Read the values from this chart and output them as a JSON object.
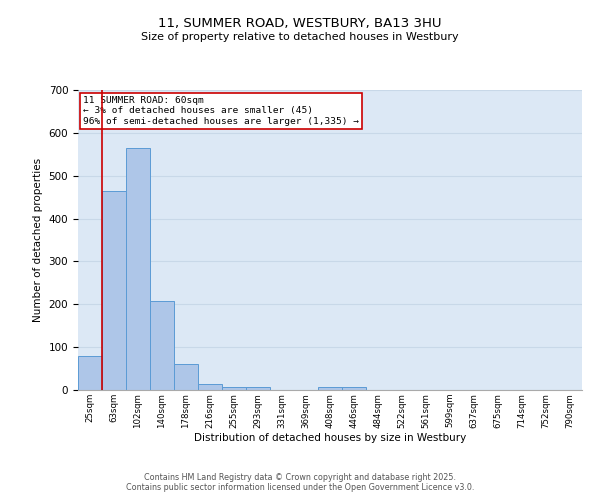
{
  "title_line1": "11, SUMMER ROAD, WESTBURY, BA13 3HU",
  "title_line2": "Size of property relative to detached houses in Westbury",
  "xlabel": "Distribution of detached houses by size in Westbury",
  "ylabel": "Number of detached properties",
  "categories": [
    "25sqm",
    "63sqm",
    "102sqm",
    "140sqm",
    "178sqm",
    "216sqm",
    "255sqm",
    "293sqm",
    "331sqm",
    "369sqm",
    "408sqm",
    "446sqm",
    "484sqm",
    "522sqm",
    "561sqm",
    "599sqm",
    "637sqm",
    "675sqm",
    "714sqm",
    "752sqm",
    "790sqm"
  ],
  "values": [
    80,
    465,
    565,
    208,
    60,
    15,
    8,
    8,
    0,
    0,
    8,
    8,
    0,
    0,
    0,
    0,
    0,
    0,
    0,
    0,
    0
  ],
  "bar_color": "#aec6e8",
  "bar_edge_color": "#5b9bd5",
  "grid_color": "#c8d8e8",
  "background_color": "#dce8f5",
  "vline_color": "#cc0000",
  "annotation_text": "11 SUMMER ROAD: 60sqm\n← 3% of detached houses are smaller (45)\n96% of semi-detached houses are larger (1,335) →",
  "annotation_box_color": "#ffffff",
  "annotation_box_edge": "#cc0000",
  "ylim": [
    0,
    700
  ],
  "yticks": [
    0,
    100,
    200,
    300,
    400,
    500,
    600,
    700
  ],
  "footer_line1": "Contains HM Land Registry data © Crown copyright and database right 2025.",
  "footer_line2": "Contains public sector information licensed under the Open Government Licence v3.0."
}
